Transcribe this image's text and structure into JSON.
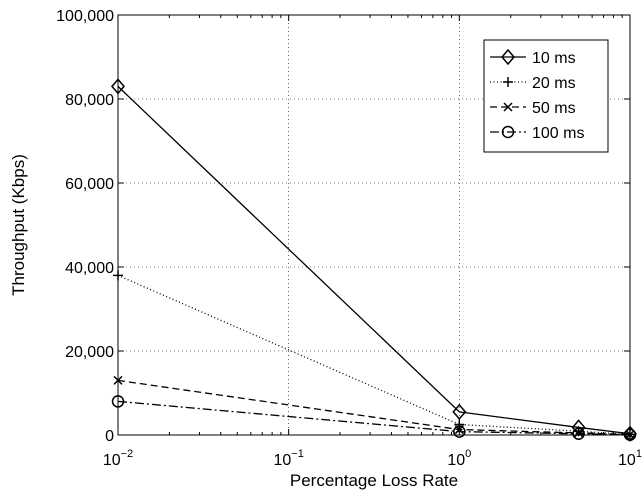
{
  "chart_data": {
    "type": "line",
    "xscale": "log",
    "x": [
      0.01,
      1,
      5,
      10
    ],
    "xlim": [
      0.01,
      10
    ],
    "ylim": [
      0,
      100000
    ],
    "xlabel": "Percentage Loss Rate",
    "ylabel": "Throughput (Kbps)",
    "xticks": [
      0.01,
      0.1,
      1,
      10
    ],
    "xtick_labels": [
      {
        "base": "10",
        "exp": "−2"
      },
      {
        "base": "10",
        "exp": "−1"
      },
      {
        "base": "10",
        "exp": "0"
      },
      {
        "base": "10",
        "exp": "1"
      }
    ],
    "yticks": [
      0,
      20000,
      40000,
      60000,
      80000,
      100000
    ],
    "ytick_labels": [
      "0",
      "20,000",
      "40,000",
      "60,000",
      "80,000",
      "100,000"
    ],
    "grid": true,
    "legend_position": "top-right",
    "series": [
      {
        "name": "10 ms",
        "values": [
          83000,
          5500,
          1800,
          300
        ],
        "line_style": "solid",
        "marker": "diamond",
        "color": "#000000"
      },
      {
        "name": "20 ms",
        "values": [
          38000,
          2500,
          900,
          150
        ],
        "line_style": "dotted",
        "marker": "plus",
        "color": "#000000"
      },
      {
        "name": "50 ms",
        "values": [
          13000,
          1300,
          500,
          100
        ],
        "line_style": "dashed",
        "marker": "x",
        "color": "#000000"
      },
      {
        "name": "100 ms",
        "values": [
          8000,
          800,
          300,
          60
        ],
        "line_style": "dashdot",
        "marker": "circle",
        "color": "#000000"
      }
    ]
  }
}
